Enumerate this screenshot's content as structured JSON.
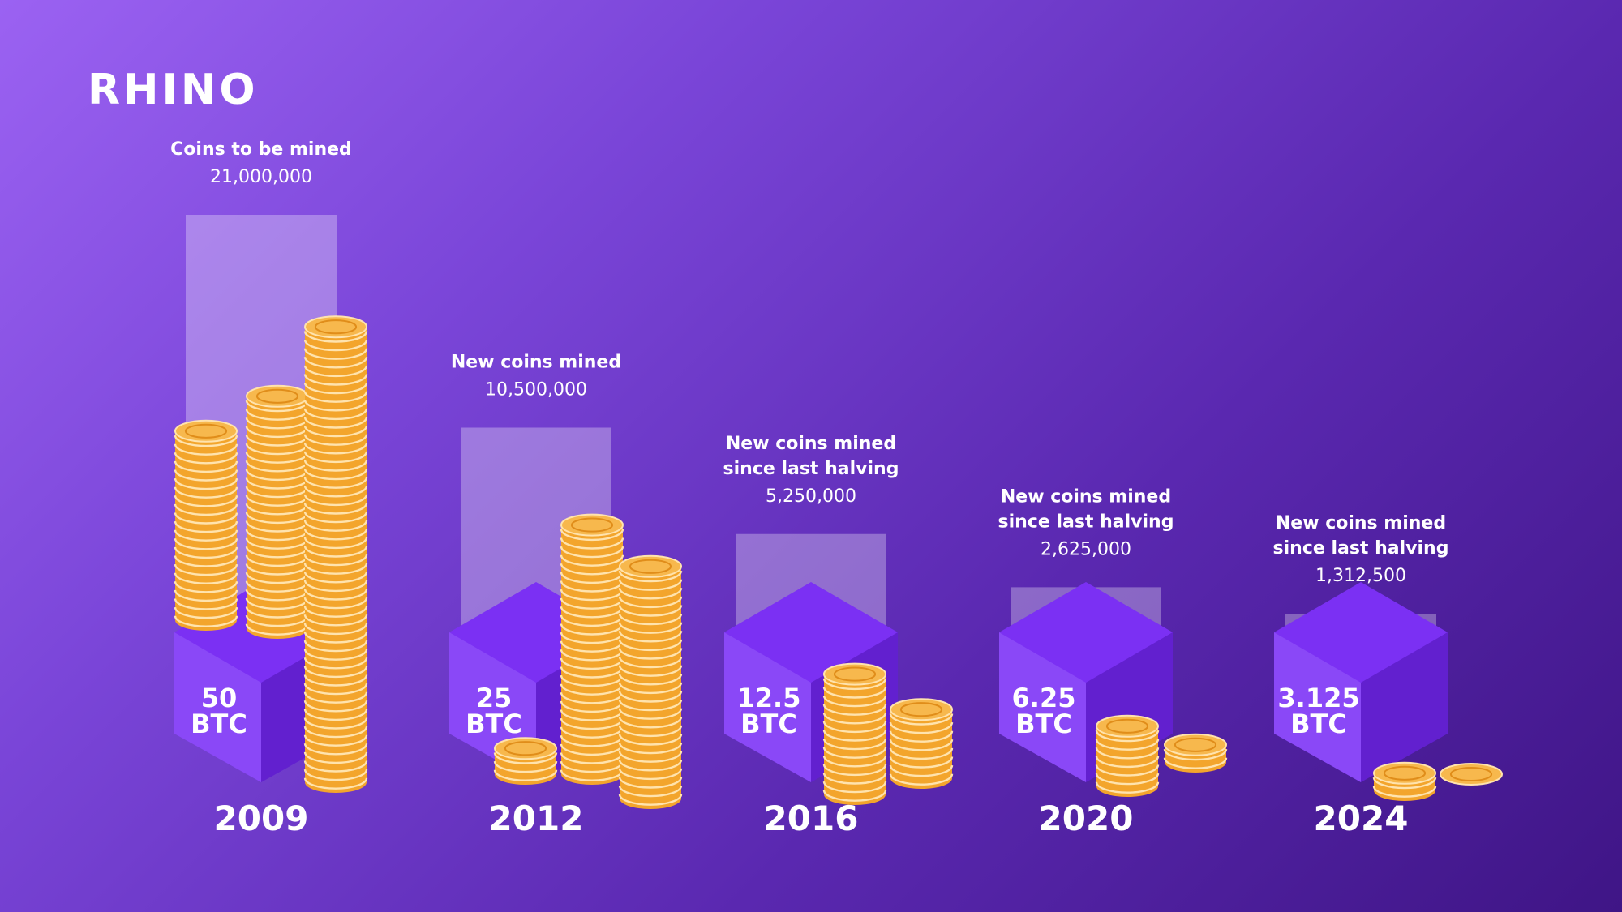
{
  "brand": {
    "logo_text": "RHINO"
  },
  "colors": {
    "bar": "#ffffff",
    "cube_top": "#7b30f3",
    "cube_left": "#8a48f7",
    "cube_right": "#6220cf",
    "coin_face": "#f7b84d",
    "coin_edge": "#f3a52c",
    "coin_line": "#ffe3ad",
    "coin_dark": "#e08d1a",
    "text": "#ffffff"
  },
  "chart_data": {
    "type": "bar",
    "title": "",
    "xlabel": "",
    "ylabel": "",
    "ylim": [
      0,
      21000000
    ],
    "categories": [
      "2009",
      "2012",
      "2016",
      "2020",
      "2024"
    ],
    "series": [
      {
        "name": "Coins mined",
        "values": [
          21000000,
          10500000,
          5250000,
          2625000,
          1312500
        ]
      }
    ],
    "bars": [
      {
        "year": "2009",
        "label_lines": [
          "Coins to be mined"
        ],
        "value_label": "21,000,000",
        "reward_lines": [
          "50",
          "BTC"
        ]
      },
      {
        "year": "2012",
        "label_lines": [
          "New coins mined"
        ],
        "value_label": "10,500,000",
        "reward_lines": [
          "25",
          "BTC"
        ]
      },
      {
        "year": "2016",
        "label_lines": [
          "New coins mined",
          "since last halving"
        ],
        "value_label": "5,250,000",
        "reward_lines": [
          "12.5",
          "BTC"
        ]
      },
      {
        "year": "2020",
        "label_lines": [
          "New coins mined",
          "since last halving"
        ],
        "value_label": "2,625,000",
        "reward_lines": [
          "6.25",
          "BTC"
        ]
      },
      {
        "year": "2024",
        "label_lines": [
          "New coins mined",
          "since last halving"
        ],
        "value_label": "1,312,500",
        "reward_lines": [
          "3.125",
          "BTC"
        ]
      }
    ],
    "block_reward_btc": [
      50,
      25,
      12.5,
      6.25,
      3.125
    ]
  }
}
